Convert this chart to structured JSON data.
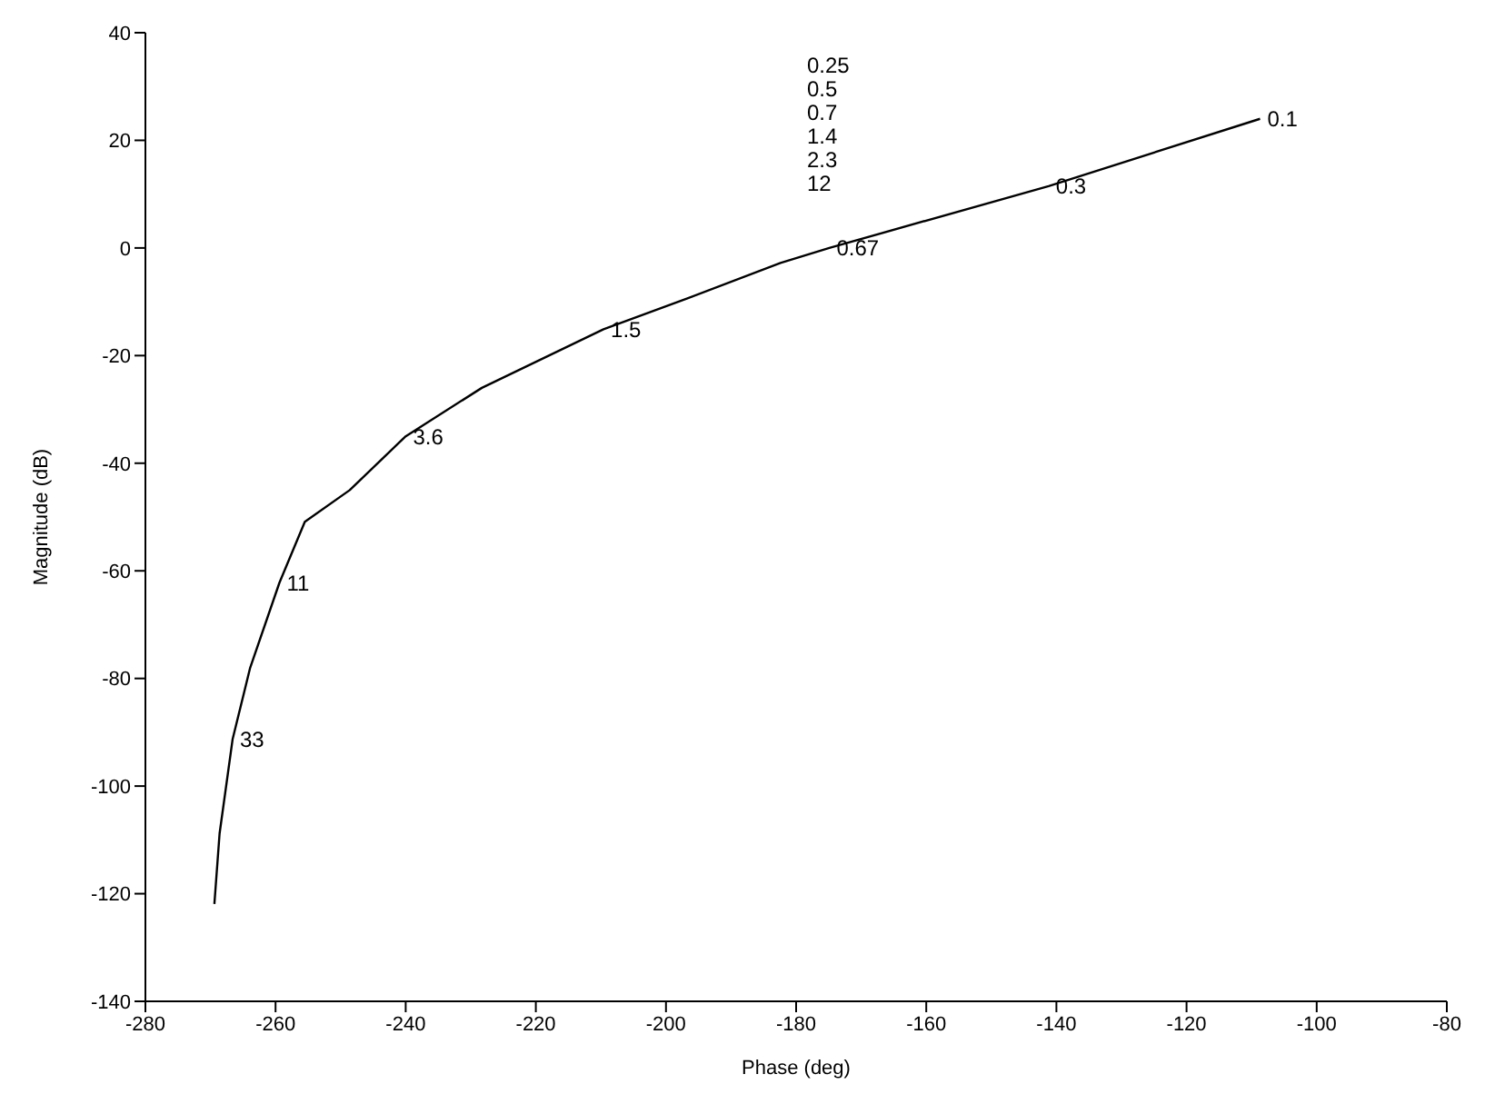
{
  "chart_data": {
    "type": "line",
    "xlabel": "Phase (deg)",
    "ylabel": "Magnitude (dB)",
    "x": [
      -108.7,
      -141.2,
      -174.9,
      -182.4,
      -196.8,
      -209.6,
      -228.3,
      -240,
      -248.6,
      -255.5,
      -259.4,
      -263.9,
      -266.6,
      -268.6,
      -269.4
    ],
    "series": [
      {
        "color": "#000000",
        "values": [
          24,
          11.5,
          0,
          -2.8,
          -9.4,
          -15.1,
          -26,
          -35,
          -45,
          -50.9,
          -62.2,
          -78,
          -91.3,
          -108.8,
          -121.9
        ]
      }
    ],
    "xlim": [
      -280,
      -80
    ],
    "xticks": [
      -280,
      -260,
      -240,
      -220,
      -200,
      -180,
      -160,
      -140,
      -120,
      -100,
      -80
    ],
    "ylim": [
      -140,
      40
    ],
    "yticks": [
      -140,
      -120,
      -100,
      -80,
      -60,
      -40,
      -20,
      0,
      20,
      40
    ],
    "grid": false,
    "legend": false,
    "marker": "none",
    "line_style": "solid",
    "annotations": [
      {
        "text": "0.1",
        "x": -108.7,
        "y": 24
      },
      {
        "text": "0.3",
        "x": -141.2,
        "y": 11.5
      },
      {
        "text": "0.67",
        "x": -174.9,
        "y": 0
      },
      {
        "text": "1.5",
        "x": -209.6,
        "y": -15.1
      },
      {
        "text": "3.6",
        "x": -240,
        "y": -35
      },
      {
        "text": "11",
        "x": -259.4,
        "y": -62.2
      },
      {
        "text": "33",
        "x": -266.6,
        "y": -91.3
      },
      "0.25",
      "0.5",
      "0.7",
      "1.4",
      "2.3",
      "12"
    ]
  }
}
